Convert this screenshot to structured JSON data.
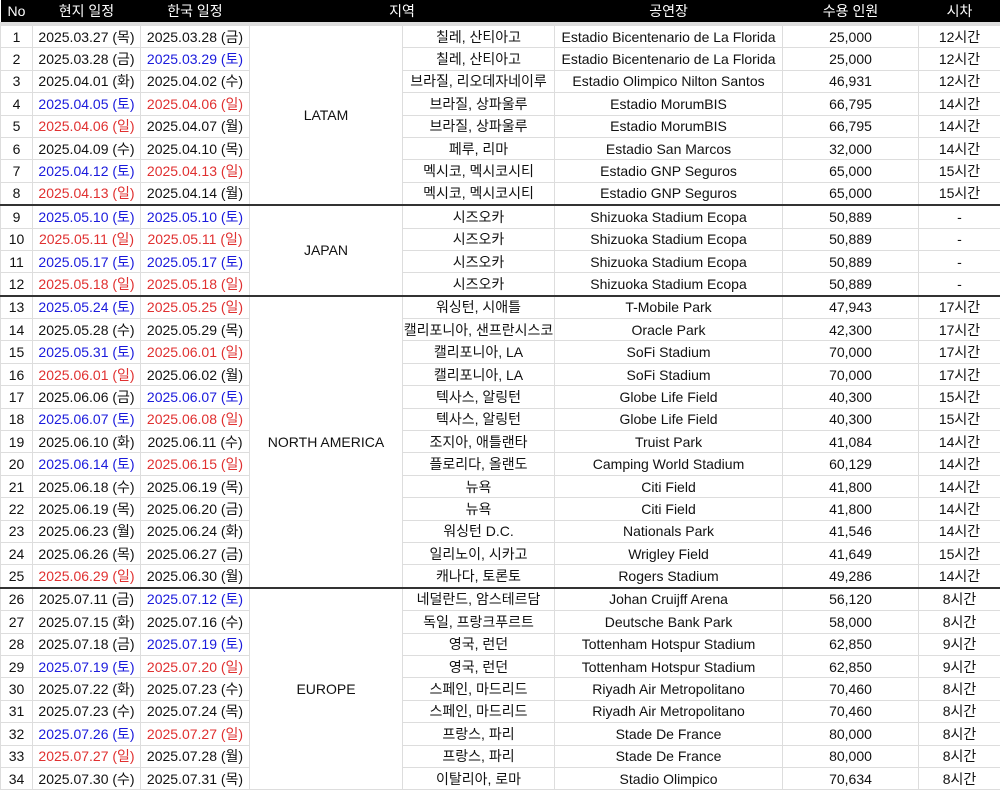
{
  "colors": {
    "saturday": "#1a1adc",
    "sunday": "#e03030",
    "header_bg": "#000000"
  },
  "headers": [
    "No",
    "현지 일정",
    "한국 일정",
    "지역",
    "",
    "공연장",
    "수용 인원",
    "시차"
  ],
  "groups": [
    {
      "region": "LATAM",
      "rows": [
        [
          "1",
          "2025.03.27 (목)",
          "2025.03.28 (금)",
          "칠레, 산티아고",
          "Estadio Bicentenario de La Florida",
          "25,000",
          "12시간"
        ],
        [
          "2",
          "2025.03.28 (금)",
          "2025.03.29 (토)",
          "칠레, 산티아고",
          "Estadio Bicentenario de La Florida",
          "25,000",
          "12시간"
        ],
        [
          "3",
          "2025.04.01 (화)",
          "2025.04.02 (수)",
          "브라질, 리오데자네이루",
          "Estadio Olimpico Nilton Santos",
          "46,931",
          "12시간"
        ],
        [
          "4",
          "2025.04.05 (토)",
          "2025.04.06 (일)",
          "브라질, 상파울루",
          "Estadio MorumBIS",
          "66,795",
          "14시간"
        ],
        [
          "5",
          "2025.04.06 (일)",
          "2025.04.07 (월)",
          "브라질, 상파울루",
          "Estadio MorumBIS",
          "66,795",
          "14시간"
        ],
        [
          "6",
          "2025.04.09 (수)",
          "2025.04.10 (목)",
          "페루, 리마",
          "Estadio San Marcos",
          "32,000",
          "14시간"
        ],
        [
          "7",
          "2025.04.12 (토)",
          "2025.04.13 (일)",
          "멕시코, 멕시코시티",
          "Estadio GNP Seguros",
          "65,000",
          "15시간"
        ],
        [
          "8",
          "2025.04.13 (일)",
          "2025.04.14 (월)",
          "멕시코, 멕시코시티",
          "Estadio GNP Seguros",
          "65,000",
          "15시간"
        ]
      ]
    },
    {
      "region": "JAPAN",
      "rows": [
        [
          "9",
          "2025.05.10 (토)",
          "2025.05.10 (토)",
          "시즈오카",
          "Shizuoka Stadium Ecopa",
          "50,889",
          "-"
        ],
        [
          "10",
          "2025.05.11 (일)",
          "2025.05.11 (일)",
          "시즈오카",
          "Shizuoka Stadium Ecopa",
          "50,889",
          "-"
        ],
        [
          "11",
          "2025.05.17 (토)",
          "2025.05.17 (토)",
          "시즈오카",
          "Shizuoka Stadium Ecopa",
          "50,889",
          "-"
        ],
        [
          "12",
          "2025.05.18 (일)",
          "2025.05.18 (일)",
          "시즈오카",
          "Shizuoka Stadium Ecopa",
          "50,889",
          "-"
        ]
      ]
    },
    {
      "region": "NORTH AMERICA",
      "rows": [
        [
          "13",
          "2025.05.24 (토)",
          "2025.05.25 (일)",
          "워싱턴, 시애틀",
          "T-Mobile Park",
          "47,943",
          "17시간"
        ],
        [
          "14",
          "2025.05.28 (수)",
          "2025.05.29 (목)",
          "캘리포니아, 샌프란시스코",
          "Oracle Park",
          "42,300",
          "17시간"
        ],
        [
          "15",
          "2025.05.31 (토)",
          "2025.06.01 (일)",
          "캘리포니아, LA",
          "SoFi Stadium",
          "70,000",
          "17시간"
        ],
        [
          "16",
          "2025.06.01 (일)",
          "2025.06.02 (월)",
          "캘리포니아, LA",
          "SoFi Stadium",
          "70,000",
          "17시간"
        ],
        [
          "17",
          "2025.06.06 (금)",
          "2025.06.07 (토)",
          "텍사스, 알링턴",
          "Globe Life Field",
          "40,300",
          "15시간"
        ],
        [
          "18",
          "2025.06.07 (토)",
          "2025.06.08 (일)",
          "텍사스, 알링턴",
          "Globe Life Field",
          "40,300",
          "15시간"
        ],
        [
          "19",
          "2025.06.10 (화)",
          "2025.06.11 (수)",
          "조지아, 애틀랜타",
          "Truist Park",
          "41,084",
          "14시간"
        ],
        [
          "20",
          "2025.06.14 (토)",
          "2025.06.15 (일)",
          "플로리다, 올랜도",
          "Camping World Stadium",
          "60,129",
          "14시간"
        ],
        [
          "21",
          "2025.06.18 (수)",
          "2025.06.19 (목)",
          "뉴욕",
          "Citi Field",
          "41,800",
          "14시간"
        ],
        [
          "22",
          "2025.06.19 (목)",
          "2025.06.20 (금)",
          "뉴욕",
          "Citi Field",
          "41,800",
          "14시간"
        ],
        [
          "23",
          "2025.06.23 (월)",
          "2025.06.24 (화)",
          "워싱턴 D.C.",
          "Nationals Park",
          "41,546",
          "14시간"
        ],
        [
          "24",
          "2025.06.26 (목)",
          "2025.06.27 (금)",
          "일리노이, 시카고",
          "Wrigley Field",
          "41,649",
          "15시간"
        ],
        [
          "25",
          "2025.06.29 (일)",
          "2025.06.30 (월)",
          "캐나다, 토론토",
          "Rogers Stadium",
          "49,286",
          "14시간"
        ]
      ]
    },
    {
      "region": "EUROPE",
      "rows": [
        [
          "26",
          "2025.07.11 (금)",
          "2025.07.12 (토)",
          "네덜란드, 암스테르담",
          "Johan Cruijff Arena",
          "56,120",
          "8시간"
        ],
        [
          "27",
          "2025.07.15 (화)",
          "2025.07.16 (수)",
          "독일, 프랑크푸르트",
          "Deutsche Bank Park",
          "58,000",
          "8시간"
        ],
        [
          "28",
          "2025.07.18 (금)",
          "2025.07.19 (토)",
          "영국, 런던",
          "Tottenham Hotspur Stadium",
          "62,850",
          "9시간"
        ],
        [
          "29",
          "2025.07.19 (토)",
          "2025.07.20 (일)",
          "영국, 런던",
          "Tottenham Hotspur Stadium",
          "62,850",
          "9시간"
        ],
        [
          "30",
          "2025.07.22 (화)",
          "2025.07.23 (수)",
          "스페인, 마드리드",
          "Riyadh Air Metropolitano",
          "70,460",
          "8시간"
        ],
        [
          "31",
          "2025.07.23 (수)",
          "2025.07.24 (목)",
          "스페인, 마드리드",
          "Riyadh Air Metropolitano",
          "70,460",
          "8시간"
        ],
        [
          "32",
          "2025.07.26 (토)",
          "2025.07.27 (일)",
          "프랑스, 파리",
          "Stade De France",
          "80,000",
          "8시간"
        ],
        [
          "33",
          "2025.07.27 (일)",
          "2025.07.28 (월)",
          "프랑스, 파리",
          "Stade De France",
          "80,000",
          "8시간"
        ],
        [
          "34",
          "2025.07.30 (수)",
          "2025.07.31 (목)",
          "이탈리아, 로마",
          "Stadio Olimpico",
          "70,634",
          "8시간"
        ]
      ]
    }
  ]
}
